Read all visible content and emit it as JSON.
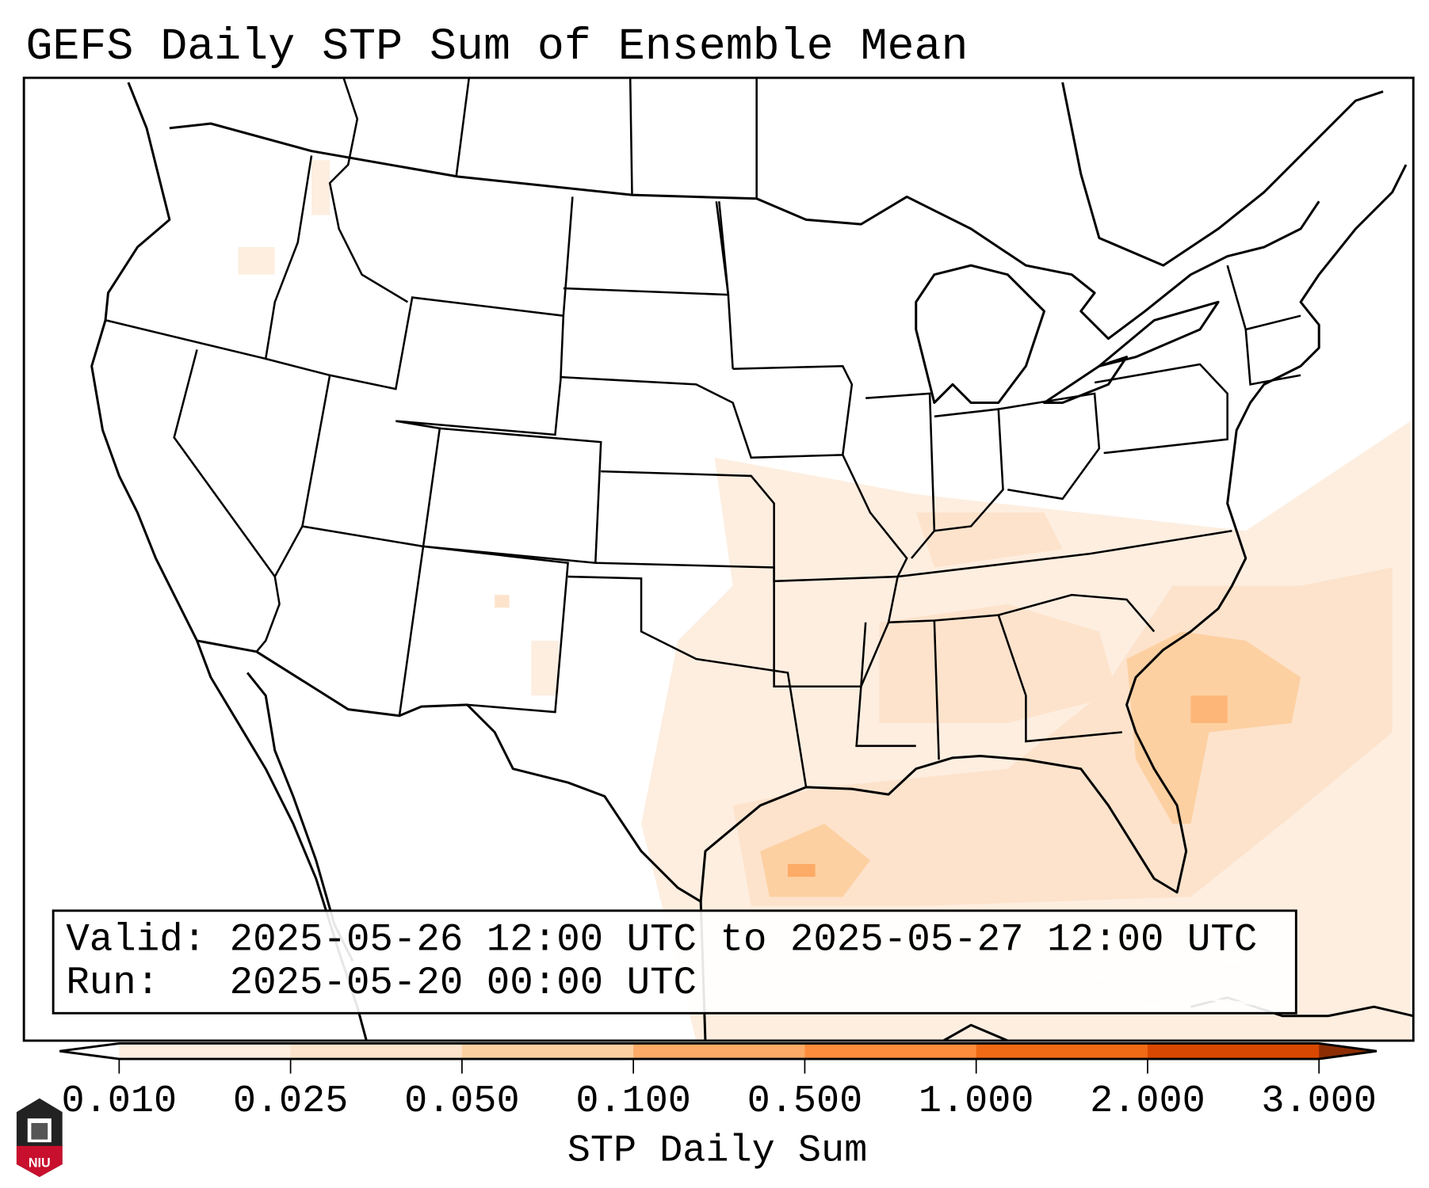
{
  "title": "GEFS Daily STP Sum of Ensemble Mean",
  "legend_box": {
    "valid_line": "Valid: 2025-05-26 12:00 UTC to 2025-05-27 12:00 UTC",
    "run_line": "Run:   2025-05-20 00:00 UTC"
  },
  "colorbar": {
    "label": "STP Daily Sum",
    "ticks": [
      "0.010",
      "0.025",
      "0.050",
      "0.100",
      "0.500",
      "1.000",
      "2.000",
      "3.000"
    ],
    "colors": [
      "#fdeee0",
      "#fde3cc",
      "#fdd0a2",
      "#fdab67",
      "#fd8d3c",
      "#f06a15",
      "#d94801"
    ],
    "extend_low_color": "#ffffff",
    "extend_high_color": "#8c2d04"
  },
  "logo": {
    "text": "NIU"
  }
}
